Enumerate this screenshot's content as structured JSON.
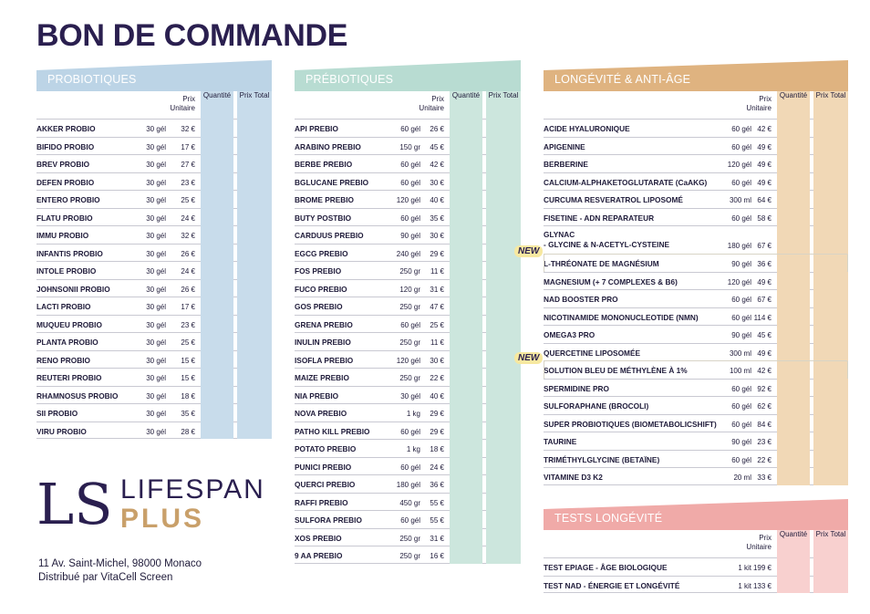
{
  "title": "BON DE COMMANDE",
  "headers": {
    "unit": "Prix\nUnitaire",
    "qty": "Quantité",
    "total": "Prix Total"
  },
  "colors": {
    "probio_band": "#bcd4e6",
    "probio_cell": "#c8dceb",
    "prebio_band": "#b8dcd2",
    "prebio_cell": "#cce6dd",
    "longev_band": "#dfb380",
    "longev_cell": "#f1d8b6",
    "tests_band": "#f0aaa8",
    "tests_cell": "#f8d0cf"
  },
  "new_label": "NEW",
  "probiotiques": {
    "title": "PROBIOTIQUES",
    "rows": [
      {
        "name": "AKKER PROBIO",
        "size": "30 gél",
        "price": "32 €"
      },
      {
        "name": "BIFIDO PROBIO",
        "size": "30 gél",
        "price": "17 €"
      },
      {
        "name": "BREV PROBIO",
        "size": "30 gél",
        "price": "27 €"
      },
      {
        "name": "DEFEN PROBIO",
        "size": "30 gél",
        "price": "23 €"
      },
      {
        "name": "ENTERO PROBIO",
        "size": "30 gél",
        "price": "25 €"
      },
      {
        "name": "FLATU PROBIO",
        "size": "30 gél",
        "price": "24 €"
      },
      {
        "name": "IMMU PROBIO",
        "size": "30 gél",
        "price": "32 €"
      },
      {
        "name": "INFANTIS PROBIO",
        "size": "30 gél",
        "price": "26 €"
      },
      {
        "name": "INTOLE PROBIO",
        "size": "30 gél",
        "price": "24 €"
      },
      {
        "name": "JOHNSONII PROBIO",
        "size": "30 gél",
        "price": "26 €"
      },
      {
        "name": "LACTI PROBIO",
        "size": "30 gél",
        "price": "17 €"
      },
      {
        "name": "MUQUEU PROBIO",
        "size": "30 gél",
        "price": "23 €"
      },
      {
        "name": "PLANTA PROBIO",
        "size": "30 gél",
        "price": "25 €"
      },
      {
        "name": "RENO PROBIO",
        "size": "30 gél",
        "price": "15 €"
      },
      {
        "name": "REUTERI PROBIO",
        "size": "30 gél",
        "price": "15 €"
      },
      {
        "name": "RHAMNOSUS PROBIO",
        "size": "30 gél",
        "price": "18 €"
      },
      {
        "name": "SII PROBIO",
        "size": "30 gél",
        "price": "35 €"
      },
      {
        "name": "VIRU PROBIO",
        "size": "30 gél",
        "price": "28 €"
      }
    ]
  },
  "prebiotiques": {
    "title": "PRÉBIOTIQUES",
    "rows": [
      {
        "name": "API PREBIO",
        "size": "60 gél",
        "price": "26 €"
      },
      {
        "name": "ARABINO PREBIO",
        "size": "150 gr",
        "price": "45 €"
      },
      {
        "name": "BERBE PREBIO",
        "size": "60 gél",
        "price": "42 €"
      },
      {
        "name": "BGLUCANE PREBIO",
        "size": "60 gél",
        "price": "30 €"
      },
      {
        "name": "BROME PREBIO",
        "size": "120 gél",
        "price": "40 €"
      },
      {
        "name": "BUTY POSTBIO",
        "size": "60 gél",
        "price": "35 €"
      },
      {
        "name": "CARDUUS PREBIO",
        "size": "90 gél",
        "price": "30 €"
      },
      {
        "name": "EGCG PREBIO",
        "size": "240 gél",
        "price": "29 €"
      },
      {
        "name": "FOS PREBIO",
        "size": "250 gr",
        "price": "11 €"
      },
      {
        "name": "FUCO PREBIO",
        "size": "120 gr",
        "price": "31 €"
      },
      {
        "name": "GOS PREBIO",
        "size": "250 gr",
        "price": "47 €"
      },
      {
        "name": "GRENA PREBIO",
        "size": "60 gél",
        "price": "25 €"
      },
      {
        "name": "INULIN PREBIO",
        "size": "250 gr",
        "price": "11 €"
      },
      {
        "name": "ISOFLA PREBIO",
        "size": "120 gél",
        "price": "30 €"
      },
      {
        "name": "MAIZE PREBIO",
        "size": "250 gr",
        "price": "22 €"
      },
      {
        "name": "NIA PREBIO",
        "size": "30 gél",
        "price": "40 €"
      },
      {
        "name": "NOVA PREBIO",
        "size": "1 kg",
        "price": "29 €"
      },
      {
        "name": "PATHO KILL PREBIO",
        "size": "60 gél",
        "price": "29 €"
      },
      {
        "name": "POTATO PREBIO",
        "size": "1 kg",
        "price": "18 €"
      },
      {
        "name": "PUNICI PREBIO",
        "size": "60 gél",
        "price": "24 €"
      },
      {
        "name": "QUERCI PREBIO",
        "size": "180 gél",
        "price": "36 €"
      },
      {
        "name": "RAFFI PREBIO",
        "size": "450 gr",
        "price": "55 €"
      },
      {
        "name": "SULFORA PREBIO",
        "size": "60 gél",
        "price": "55 €"
      },
      {
        "name": "XOS PREBIO",
        "size": "250 gr",
        "price": "31 €"
      },
      {
        "name": "9 AA PREBIO",
        "size": "250 gr",
        "price": "16 €"
      }
    ]
  },
  "longevite": {
    "title": "LONGÉVITÉ & ANTI-ÂGE",
    "rows": [
      {
        "name": "ACIDE HYALURONIQUE",
        "size": "60 gél",
        "price": "42 €"
      },
      {
        "name": "APIGENINE",
        "size": "60 gél",
        "price": "49 €"
      },
      {
        "name": "BERBERINE",
        "size": "120 gél",
        "price": "49 €"
      },
      {
        "name": "CALCIUM-ALPHAKETOGLUTARATE (CaAKG)",
        "size": "60 gél",
        "price": "49 €"
      },
      {
        "name": "CURCUMA RESVERATROL LIPOSOMÉ",
        "size": "300 ml",
        "price": "64 €"
      },
      {
        "name": "FISETINE - ADN REPARATEUR",
        "size": "60 gél",
        "price": "58 €"
      },
      {
        "name": "GLYNAC",
        "name2": "- GLYCINE & N-ACETYL-CYSTEINE",
        "size": "180 gél",
        "price": "67 €",
        "tall": true
      },
      {
        "name": "L-THRÉONATE DE MAGNÉSIUM",
        "size": "90 gél",
        "price": "36 €",
        "isnew": true
      },
      {
        "name": "MAGNESIUM (+ 7 COMPLEXES & B6)",
        "size": "120 gél",
        "price": "49 €"
      },
      {
        "name": "NAD BOOSTER PRO",
        "size": "60 gél",
        "price": "67 €"
      },
      {
        "name": "NICOTINAMIDE MONONUCLEOTIDE (NMN)",
        "size": "60 gél",
        "price": "114 €"
      },
      {
        "name": "OMEGA3 PRO",
        "size": "90 gél",
        "price": "45 €"
      },
      {
        "name": "QUERCETINE LIPOSOMÉE",
        "size": "300 ml",
        "price": "49 €"
      },
      {
        "name": "SOLUTION BLEU DE MÉTHYLÈNE À 1%",
        "size": "100 ml",
        "price": "42 €",
        "isnew": true
      },
      {
        "name": "SPERMIDINE PRO",
        "size": "60 gél",
        "price": "92 €"
      },
      {
        "name": "SULFORAPHANE (BROCOLI)",
        "size": "60 gél",
        "price": "62 €"
      },
      {
        "name": "SUPER PROBIOTIQUES (BIOMETABOLICSHIFT)",
        "size": "60 gél",
        "price": "84 €"
      },
      {
        "name": "TAURINE",
        "size": "90 gél",
        "price": "23 €"
      },
      {
        "name": "TRIMÉTHYLGLYCINE (BETAÏNE)",
        "size": "60 gél",
        "price": "22 €"
      },
      {
        "name": "VITAMINE D3 K2",
        "size": "20 ml",
        "price": "33 €"
      }
    ]
  },
  "tests": {
    "title": "TESTS LONGÉVITÉ",
    "rows": [
      {
        "name": "TEST EPIAGE - ÂGE BIOLOGIQUE",
        "size": "1 kit",
        "price": "199 €"
      },
      {
        "name": "TEST NAD - ÉNERGIE ET LONGÉVITÉ",
        "size": "1 kit",
        "price": "133 €"
      }
    ]
  },
  "brand": {
    "mark": "LS",
    "word1": "LIFESPAN",
    "word2": "PLUS"
  },
  "address": {
    "line1": "11 Av. Saint-Michel, 98000 Monaco",
    "line2": "Distribué par VitaCell Screen"
  }
}
